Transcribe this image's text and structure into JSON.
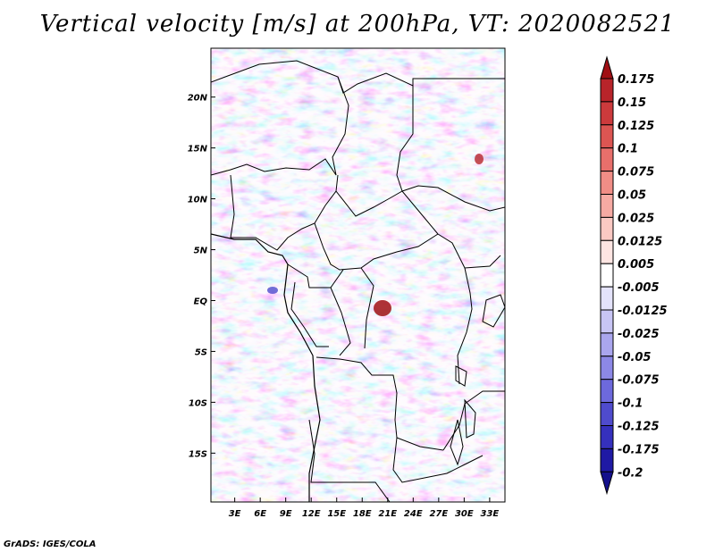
{
  "title": "Vertical velocity [m/s] at 200hPa, VT: 2020082521",
  "credit": "GrADS: IGES/COLA",
  "map": {
    "lat_labels": [
      "20N",
      "15N",
      "10N",
      "5N",
      "EQ",
      "5S",
      "10S",
      "15S"
    ],
    "lat_values": [
      20,
      15,
      10,
      5,
      0,
      -5,
      -10,
      -15
    ],
    "lon_labels": [
      "3E",
      "6E",
      "9E",
      "12E",
      "15E",
      "18E",
      "21E",
      "24E",
      "27E",
      "30E",
      "33E"
    ],
    "lon_values": [
      3,
      6,
      9,
      12,
      15,
      18,
      21,
      24,
      27,
      30,
      33
    ],
    "lat_range": [
      -19.8,
      24.8
    ],
    "lon_range": [
      0.2,
      34.8
    ]
  },
  "colorbar": {
    "labels": [
      "0.175",
      "0.15",
      "0.125",
      "0.1",
      "0.075",
      "0.05",
      "0.025",
      "0.0125",
      "0.005",
      "-0.005",
      "-0.0125",
      "-0.025",
      "-0.05",
      "-0.075",
      "-0.1",
      "-0.125",
      "-0.175",
      "-0.2"
    ],
    "colors": [
      "#a00f14",
      "#b8242a",
      "#cc3a3c",
      "#dc5552",
      "#e86f6b",
      "#f08d86",
      "#f6aaa3",
      "#fbc9c3",
      "#fee5e2",
      "#ffffff",
      "#e4e3fb",
      "#c8c5f5",
      "#aaa6ee",
      "#8c88e6",
      "#6d69dc",
      "#4f4bcd",
      "#3530bd",
      "#1f19a4",
      "#14108c"
    ]
  }
}
